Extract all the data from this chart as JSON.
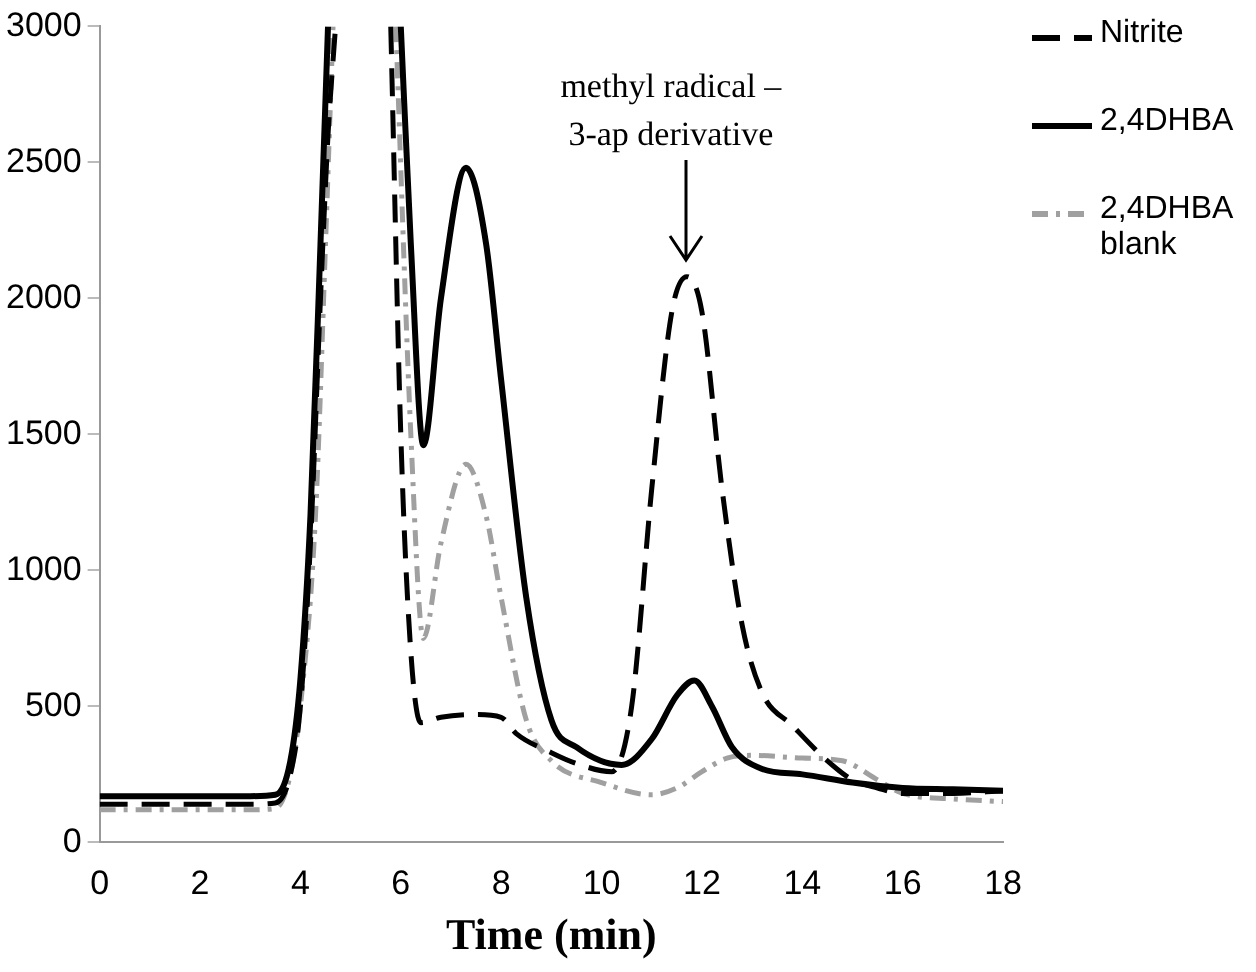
{
  "chart_data": {
    "type": "line",
    "xlabel": "Time (min)",
    "xlim": [
      0,
      18
    ],
    "xticks": [
      0,
      2,
      4,
      6,
      8,
      10,
      12,
      14,
      16,
      18
    ],
    "ylim": [
      0,
      3000
    ],
    "yticks": [
      0,
      500,
      1000,
      1500,
      2000,
      2500,
      3000
    ],
    "grid": false,
    "legend": "right",
    "marker": "none",
    "annotations": [
      {
        "text": "methyl radical –\n3-ap derivative",
        "x": 11.7,
        "y": 2080
      }
    ],
    "series": [
      {
        "name": "Nitrite",
        "color": "#000000",
        "line_style": "dashed",
        "x": [
          0,
          1,
          2,
          3,
          3.5,
          3.8,
          4.0,
          4.2,
          4.4,
          4.55,
          4.7,
          5.0,
          5.8,
          6.0,
          6.2,
          6.4,
          6.8,
          7.5,
          8.0,
          8.3,
          9.0,
          9.5,
          10.2,
          10.6,
          11.0,
          11.4,
          11.7,
          12.0,
          12.4,
          12.8,
          13.2,
          13.8,
          14.5,
          15.0,
          15.5,
          16,
          17,
          18
        ],
        "values": [
          140,
          140,
          140,
          140,
          145,
          250,
          500,
          1100,
          2000,
          2600,
          3000,
          null,
          3000,
          1500,
          700,
          440,
          460,
          470,
          460,
          400,
          330,
          290,
          260,
          500,
          1300,
          1950,
          2080,
          1950,
          1300,
          800,
          550,
          430,
          300,
          230,
          200,
          180,
          180,
          190
        ]
      },
      {
        "name": "2,4DHBA",
        "color": "#000000",
        "line_style": "solid",
        "x": [
          0,
          1,
          2,
          3,
          3.5,
          3.8,
          4.0,
          4.2,
          4.4,
          4.55,
          5.0,
          6.0,
          6.2,
          6.45,
          6.8,
          7.3,
          7.7,
          8.0,
          8.5,
          9.0,
          9.5,
          10.4,
          11.0,
          11.5,
          11.85,
          12.2,
          12.6,
          13.2,
          14,
          15,
          16,
          17,
          18
        ],
        "values": [
          170,
          170,
          170,
          170,
          175,
          300,
          600,
          1200,
          2200,
          3000,
          null,
          3000,
          2200,
          1460,
          2000,
          2480,
          2200,
          1700,
          900,
          450,
          350,
          285,
          380,
          540,
          595,
          500,
          350,
          270,
          250,
          220,
          200,
          195,
          190
        ]
      },
      {
        "name": "2,4DHBA blank",
        "color": "#a0a0a0",
        "line_style": "dashdot",
        "x": [
          0,
          1,
          2,
          3,
          3.5,
          3.8,
          4.0,
          4.3,
          4.5,
          4.65,
          5.0,
          5.9,
          6.2,
          6.45,
          6.8,
          7.3,
          7.7,
          8.0,
          8.5,
          9.0,
          10.0,
          11.0,
          11.5,
          12.0,
          12.5,
          13.0,
          14.0,
          14.8,
          15.5,
          16,
          17,
          18
        ],
        "values": [
          120,
          120,
          120,
          120,
          125,
          250,
          500,
          1200,
          2200,
          3000,
          null,
          3000,
          1500,
          750,
          1100,
          1390,
          1200,
          900,
          450,
          300,
          220,
          175,
          200,
          260,
          310,
          320,
          310,
          300,
          230,
          180,
          160,
          150
        ]
      }
    ]
  }
}
